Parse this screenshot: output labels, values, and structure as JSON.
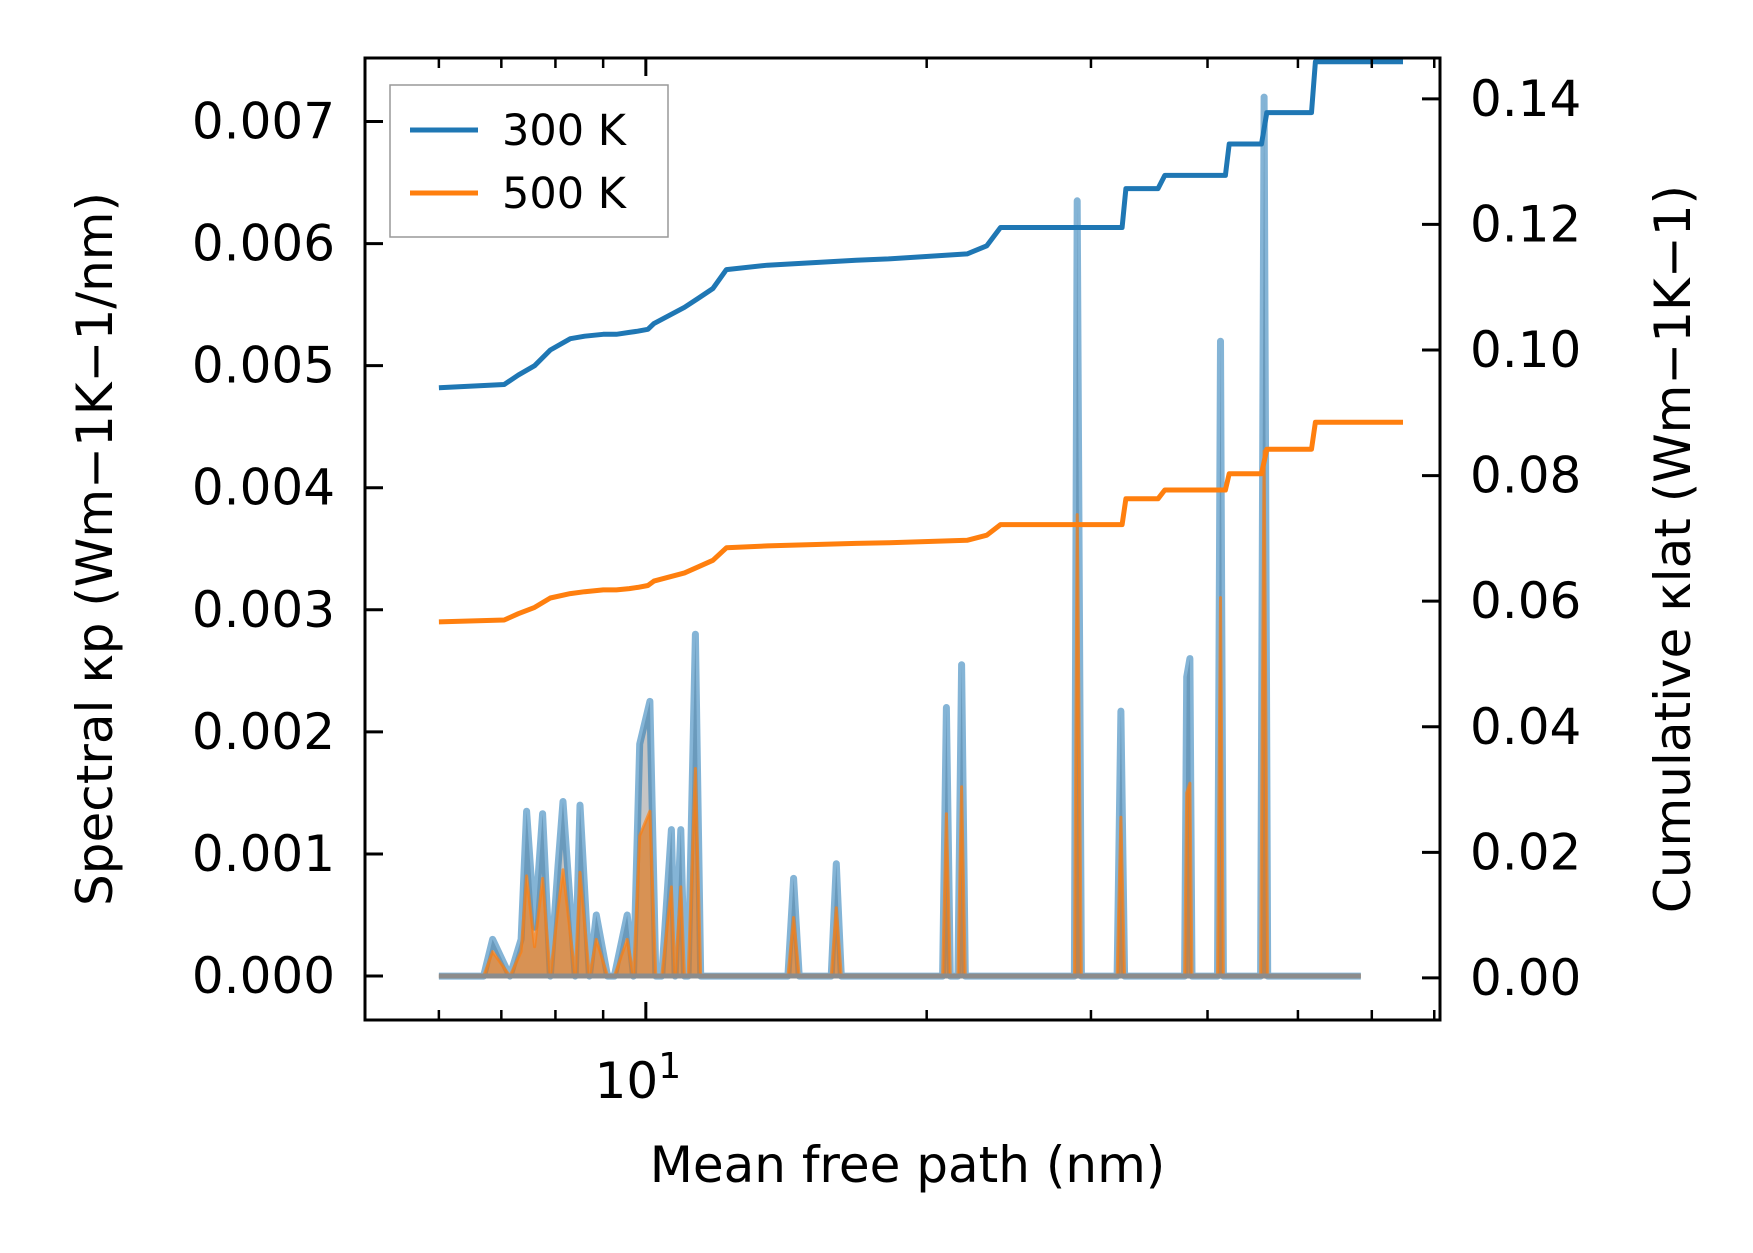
{
  "chart_data": {
    "type": "line",
    "xscale": "log",
    "xlabel": "Mean free path (nm)",
    "ylabel_left": "Spectral κp (Wm−1K−1/nm)",
    "ylabel_right": "Cumulative κlat (Wm−1K−1)",
    "xlim": [
      5,
      71
    ],
    "ylim_left": [
      -0.00036,
      0.00752
    ],
    "ylim_right": [
      -0.0067,
      0.1465
    ],
    "x_ticks": [
      {
        "value": 10,
        "base": "10",
        "exp": "1"
      }
    ],
    "y_ticks_left": [
      "0.000",
      "0.001",
      "0.002",
      "0.003",
      "0.004",
      "0.005",
      "0.006",
      "0.007"
    ],
    "y_ticks_right": [
      "0.00",
      "0.02",
      "0.04",
      "0.06",
      "0.08",
      "0.10",
      "0.12",
      "0.14"
    ],
    "legend": {
      "position": "top-left",
      "entries": [
        "300 K",
        "500 K"
      ]
    },
    "colors": {
      "300K": "#1f77b4",
      "500K": "#ff7f0e",
      "fill": "#8c8c8c"
    },
    "series": [
      {
        "name": "300 K",
        "axis": "right",
        "kind": "cumulative",
        "x": [
          6.0,
          7.05,
          7.3,
          7.6,
          7.9,
          8.3,
          8.6,
          9.0,
          9.3,
          9.6,
          9.8,
          10.05,
          10.2,
          11.0,
          11.4,
          11.8,
          12.2,
          13.5,
          16.8,
          18.2,
          22.1,
          23.2,
          24.0,
          32.4,
          32.7,
          35.4,
          36.0,
          41.8,
          42.2,
          45.7,
          46.3,
          51.7,
          52.2,
          63.3,
          63.8,
          64.8
        ],
        "y": [
          0.094,
          0.0945,
          0.096,
          0.0975,
          0.1,
          0.1018,
          0.1022,
          0.1025,
          0.1025,
          0.1028,
          0.103,
          0.1033,
          0.1042,
          0.1068,
          0.1083,
          0.1098,
          0.1128,
          0.1135,
          0.1143,
          0.1145,
          0.1153,
          0.1166,
          0.1195,
          0.1195,
          0.1257,
          0.1257,
          0.1278,
          0.1278,
          0.1328,
          0.1328,
          0.1378,
          0.1378,
          0.1459,
          0.1459,
          0.1459,
          0.1459
        ]
      },
      {
        "name": "500 K",
        "axis": "right",
        "kind": "cumulative",
        "x": [
          6.0,
          7.05,
          7.3,
          7.6,
          7.9,
          8.3,
          8.6,
          9.0,
          9.3,
          9.6,
          9.8,
          10.05,
          10.2,
          11.0,
          11.4,
          11.8,
          12.2,
          13.5,
          16.8,
          18.2,
          22.1,
          23.2,
          24.0,
          32.4,
          32.7,
          35.4,
          36.0,
          41.8,
          42.2,
          45.7,
          46.3,
          51.7,
          52.2,
          63.3,
          63.8,
          64.8
        ],
        "y": [
          0.0567,
          0.057,
          0.058,
          0.059,
          0.0605,
          0.0612,
          0.0615,
          0.0618,
          0.0618,
          0.062,
          0.0622,
          0.0625,
          0.0632,
          0.0645,
          0.0655,
          0.0665,
          0.0685,
          0.0688,
          0.0692,
          0.0693,
          0.0697,
          0.0705,
          0.0722,
          0.0722,
          0.0763,
          0.0763,
          0.0777,
          0.0777,
          0.0803,
          0.0803,
          0.0842,
          0.0842,
          0.0885,
          0.0885,
          0.0885,
          0.0885
        ]
      },
      {
        "name": "300 K spectral",
        "axis": "left",
        "kind": "spectral",
        "x": [
          6.0,
          6.7,
          6.85,
          7.15,
          7.35,
          7.45,
          7.6,
          7.75,
          7.9,
          8.05,
          8.15,
          8.4,
          8.5,
          8.7,
          8.85,
          9.1,
          9.25,
          9.55,
          9.7,
          9.85,
          10.1,
          10.25,
          10.4,
          10.65,
          10.75,
          10.9,
          11.0,
          11.1,
          11.3,
          11.45,
          11.65,
          11.8,
          12.1,
          14.2,
          14.4,
          14.6,
          15.8,
          16.0,
          16.2,
          20.8,
          21.0,
          21.2,
          21.6,
          21.8,
          22.0,
          28.8,
          29.0,
          29.3,
          32.0,
          32.3,
          32.6,
          37.8,
          38.0,
          38.3,
          38.5,
          38.8,
          41.0,
          41.3,
          41.6,
          45.6,
          46.0,
          46.4,
          57.0,
          57.3,
          57.6,
          58.0,
          58.4
        ],
        "y": [
          0.0,
          0.0,
          0.0003,
          0.0,
          0.0003,
          0.00135,
          0.0004,
          0.00133,
          0.0,
          0.0009,
          0.00143,
          0.0,
          0.0014,
          0.0,
          0.0005,
          0.0,
          0.0,
          0.0005,
          0.0,
          0.0019,
          0.00225,
          0.0,
          0.0,
          0.0012,
          0.0,
          0.0012,
          0.0,
          0.0,
          0.0028,
          0.0,
          0.0,
          0.0,
          0.0,
          0.0,
          0.0008,
          0.0,
          0.0,
          0.00092,
          0.0,
          0.0,
          0.0022,
          0.0,
          0.0,
          0.00255,
          0.0,
          0.0,
          0.00635,
          0.0,
          0.0,
          0.00217,
          0.0,
          0.0,
          0.00245,
          0.0026,
          0.0,
          0.0,
          0.0,
          0.0052,
          0.0,
          0.0,
          0.0072,
          0.0,
          0.0,
          0.0,
          0.0,
          0.0,
          0.0
        ]
      },
      {
        "name": "500 K spectral",
        "axis": "left",
        "kind": "spectral",
        "x": [
          6.0,
          6.7,
          6.85,
          7.15,
          7.35,
          7.45,
          7.6,
          7.75,
          7.9,
          8.05,
          8.15,
          8.4,
          8.5,
          8.7,
          8.85,
          9.1,
          9.25,
          9.55,
          9.7,
          9.85,
          10.1,
          10.25,
          10.4,
          10.65,
          10.75,
          10.9,
          11.0,
          11.1,
          11.3,
          11.45,
          11.65,
          11.8,
          12.1,
          14.2,
          14.4,
          14.6,
          15.8,
          16.0,
          16.2,
          20.8,
          21.0,
          21.2,
          21.6,
          21.8,
          22.0,
          28.8,
          29.0,
          29.3,
          32.0,
          32.3,
          32.6,
          37.8,
          38.0,
          38.3,
          38.5,
          38.8,
          41.0,
          41.3,
          41.6,
          45.6,
          46.0,
          46.4,
          57.0,
          57.3,
          57.6,
          58.0,
          58.4
        ],
        "y": [
          0.0,
          0.0,
          0.0002,
          0.0,
          0.0002,
          0.00082,
          0.00024,
          0.0008,
          0.0,
          0.00055,
          0.00087,
          0.0,
          0.00085,
          0.0,
          0.0003,
          0.0,
          0.0,
          0.0003,
          0.0,
          0.00115,
          0.00135,
          0.0,
          0.0,
          0.00073,
          0.0,
          0.00073,
          0.0,
          0.0,
          0.0017,
          0.0,
          0.0,
          0.0,
          0.0,
          0.0,
          0.00048,
          0.0,
          0.0,
          0.00056,
          0.0,
          0.0,
          0.00133,
          0.0,
          0.0,
          0.00155,
          0.0,
          0.0,
          0.00378,
          0.0,
          0.0,
          0.0013,
          0.0,
          0.0,
          0.0015,
          0.00158,
          0.0,
          0.0,
          0.0,
          0.0031,
          0.0,
          0.0,
          0.0043,
          0.0,
          0.0,
          0.0,
          0.0,
          0.0,
          0.0
        ]
      }
    ]
  }
}
